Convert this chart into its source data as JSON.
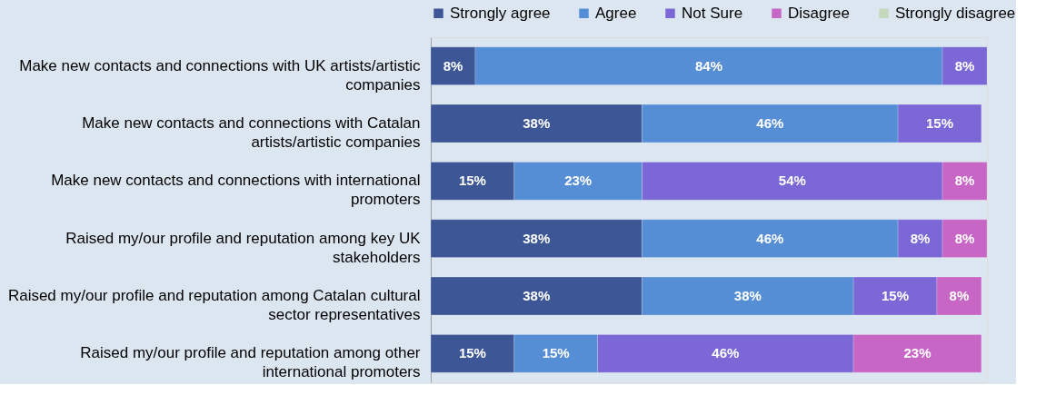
{
  "chart_data": {
    "type": "bar",
    "orientation": "horizontal",
    "stacked": true,
    "legend": "top",
    "tick_labels": "y",
    "xlim": [
      0,
      100
    ],
    "categories": [
      "Make new contacts and connections with UK artists/artistic companies",
      "Make new contacts and connections with Catalan artists/artistic companies",
      "Make new contacts and connections with international promoters",
      "Raised my/our profile and reputation among key UK stakeholders",
      "Raised my/our profile and reputation among Catalan cultural sector representatives",
      "Raised my/our profile and reputation among other international promoters"
    ],
    "series": [
      {
        "name": "Strongly agree",
        "color": "#3d5796",
        "values": [
          8,
          38,
          15,
          38,
          38,
          15
        ],
        "value_labels": [
          "8%",
          "38%",
          "15%",
          "38%",
          "38%",
          "15%"
        ]
      },
      {
        "name": "Agree",
        "color": "#558ed5",
        "values": [
          84,
          46,
          23,
          46,
          38,
          15
        ],
        "value_labels": [
          "84%",
          "46%",
          "23%",
          "46%",
          "38%",
          "15%"
        ]
      },
      {
        "name": "Not Sure",
        "color": "#7b68d6",
        "values": [
          8,
          15,
          54,
          8,
          15,
          46
        ],
        "value_labels": [
          "8%",
          "15%",
          "54%",
          "8%",
          "15%",
          "46%"
        ]
      },
      {
        "name": "Disagree",
        "color": "#c866c6",
        "values": [
          null,
          null,
          8,
          8,
          8,
          23
        ],
        "value_labels": [
          null,
          null,
          "8%",
          "8%",
          "8%",
          "23%"
        ]
      },
      {
        "name": "Strongly disagree",
        "color": "#c3d8bd",
        "values": [
          null,
          null,
          null,
          null,
          null,
          null
        ],
        "value_labels": [
          null,
          null,
          null,
          null,
          null,
          null
        ]
      }
    ]
  }
}
